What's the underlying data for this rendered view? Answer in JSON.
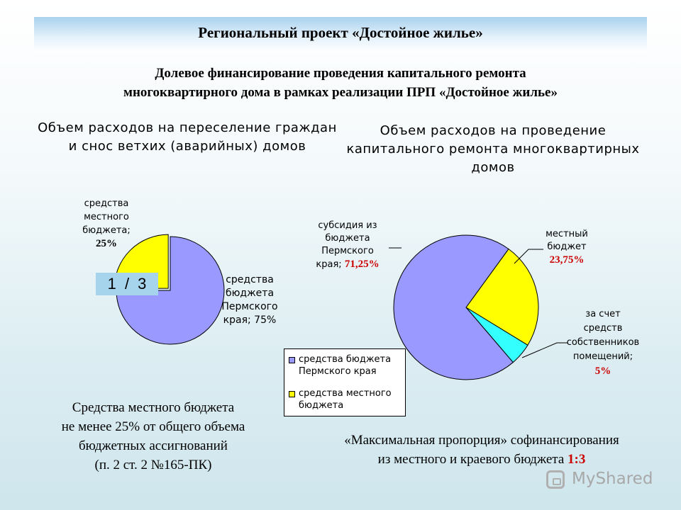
{
  "slide": {
    "title": "Региональный проект «Достойное жилье»",
    "subtitle_line1": "Долевое финансирование проведения капитального ремонта",
    "subtitle_line2": "многоквартирного дома в рамках реализации ПРП «Достойное жилье»"
  },
  "chart_data": [
    {
      "type": "pie",
      "title_line1": "Объем расходов на переселение граждан",
      "title_line2": "и снос ветхих (аварийных) домов",
      "slices": [
        {
          "label_lines": [
            "средства",
            "местного",
            "бюджета;"
          ],
          "pct_label": "25%",
          "value": 25,
          "color": "#ffff00",
          "exploded": true
        },
        {
          "label_lines": [
            "средства",
            "бюджета",
            "Пермского",
            "края; 75%"
          ],
          "pct_label": "",
          "value": 75,
          "color": "#9999ff",
          "exploded": false
        }
      ]
    },
    {
      "type": "pie",
      "title_line1": "Объем расходов на проведение",
      "title_line2": "капитального ремонта многоквартирных",
      "title_line3": "домов",
      "slices": [
        {
          "label_lines": [
            "местный",
            "бюджет"
          ],
          "pct_label": "23,75%",
          "value": 23.75,
          "color": "#ffff00"
        },
        {
          "label_lines": [
            "за счет",
            "средств",
            "собственников",
            "помещений;"
          ],
          "pct_label": "5%",
          "value": 5,
          "color": "#33ffff"
        },
        {
          "label_lines": [
            "субсидия из",
            "бюджета",
            "Пермского",
            "края;"
          ],
          "pct_label": "71,25%",
          "value": 71.25,
          "color": "#9999ff"
        }
      ],
      "legend": {
        "placement": "bottom-left",
        "items": [
          {
            "line1": "средства бюджета",
            "line2": "Пермского края",
            "color": "#9999ff"
          },
          {
            "line1": "средства местного",
            "line2": "бюджета",
            "color": "#ffff00"
          }
        ]
      }
    }
  ],
  "ratio_box": "1 / 3",
  "notes": {
    "left_line1": "Средства местного бюджета",
    "left_line2": "не менее 25% от общего объема",
    "left_line3": "бюджетных ассигнований",
    "left_line4": "(п. 2 ст. 2 №165-ПК)",
    "right_line1": "«Максимальная пропорция» софинансирования",
    "right_line2": "из местного и краевого бюджета ",
    "right_ratio": "1:3"
  },
  "watermark": "MyShared"
}
